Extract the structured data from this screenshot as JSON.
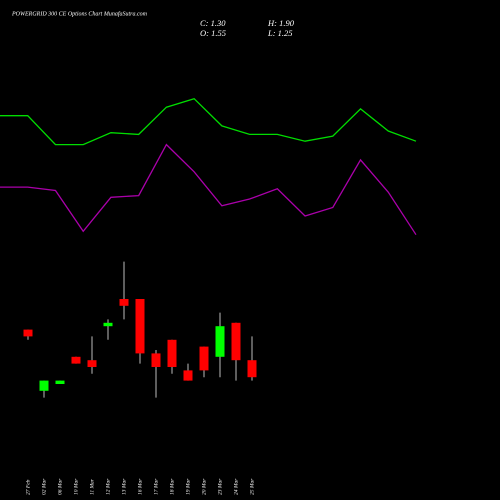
{
  "chart_data": [
    {
      "type": "candlestick",
      "title": "POWERGRID 300 CE Options Chart MunafaSutra.com",
      "header": [
        "C: 1.30",
        "H: 1.90",
        "O: 1.55",
        "L: 1.25"
      ],
      "categories": [
        "27 Feb",
        "02 Mar",
        "06 Mar",
        "10 Mar",
        "11 Mar",
        "12 Mar",
        "13 Mar",
        "16 Mar",
        "17 Mar",
        "18 Mar",
        "19 Mar",
        "20 Mar",
        "23 Mar",
        "24 Mar",
        "25 Mar"
      ],
      "open": [
        2.0,
        1.1,
        1.2,
        1.6,
        1.55,
        2.05,
        2.45,
        2.45,
        1.65,
        1.85,
        1.4,
        1.75,
        1.6,
        2.1,
        1.55
      ],
      "high": [
        2.0,
        1.25,
        1.25,
        1.6,
        1.9,
        2.15,
        3.0,
        2.45,
        1.7,
        1.85,
        1.5,
        1.75,
        2.25,
        2.1,
        1.9
      ],
      "low": [
        1.85,
        1.0,
        1.2,
        1.5,
        1.35,
        1.85,
        2.15,
        1.5,
        1.0,
        1.35,
        1.25,
        1.3,
        1.3,
        1.25,
        1.25
      ],
      "close": [
        1.9,
        1.25,
        1.25,
        1.5,
        1.45,
        2.1,
        2.35,
        1.65,
        1.45,
        1.45,
        1.25,
        1.4,
        2.05,
        1.55,
        1.3
      ],
      "up_color": "#00ff00",
      "down_color": "#ff0000",
      "wick_color": "#bbbbbb",
      "ylim": [
        0.95,
        3.2
      ]
    },
    {
      "type": "line",
      "series": [
        {
          "color": "#00dd00",
          "values": [
            79,
            79,
            62,
            62,
            69,
            68,
            84,
            89,
            73,
            68,
            68,
            64,
            67,
            83,
            70,
            64
          ]
        },
        {
          "color": "#aa00aa",
          "values": [
            37,
            37,
            35,
            11,
            31,
            32,
            62,
            46,
            26,
            30,
            36,
            20,
            25,
            53,
            34,
            9
          ]
        }
      ],
      "ylim": [
        0,
        100
      ]
    }
  ]
}
